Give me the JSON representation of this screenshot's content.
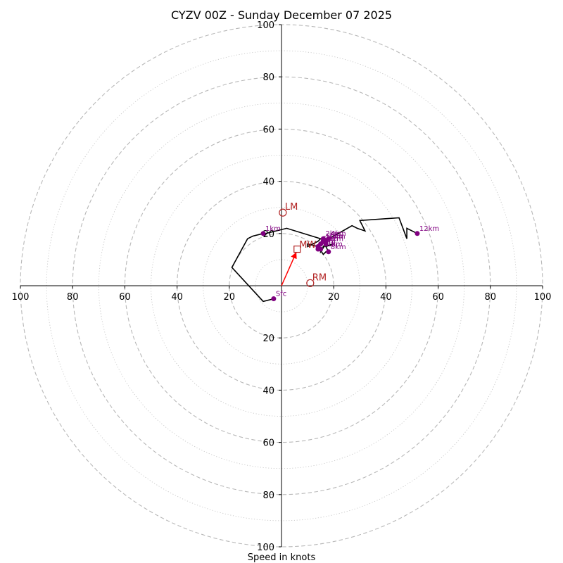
{
  "chart_data": {
    "type": "hodograph",
    "title": "CYZV 00Z - Sunday December 07 2025",
    "xlabel": "Speed in knots",
    "units": "knots",
    "range": [
      -100,
      100
    ],
    "rings_major": [
      20,
      40,
      60,
      80,
      100
    ],
    "rings_minor": [
      10,
      30,
      50,
      70,
      90
    ],
    "x_tick_values": [
      -100,
      -80,
      -60,
      -40,
      -20,
      20,
      40,
      60,
      80,
      100
    ],
    "x_tick_labels": [
      "100",
      "80",
      "60",
      "40",
      "20",
      "20",
      "40",
      "60",
      "80",
      "100"
    ],
    "y_tick_values": [
      100,
      80,
      60,
      40,
      20,
      -20,
      -40,
      -60,
      -80,
      -100
    ],
    "y_tick_labels": [
      "100",
      "80",
      "60",
      "40",
      "20",
      "20",
      "40",
      "60",
      "80",
      "100"
    ],
    "trace": {
      "color": "#000000",
      "points": [
        [
          -3,
          -5
        ],
        [
          -7,
          -6
        ],
        [
          -19,
          7
        ],
        [
          -13,
          18
        ],
        [
          -11,
          19
        ],
        [
          -7,
          20
        ],
        [
          -6,
          20
        ],
        [
          2,
          22
        ],
        [
          15,
          18
        ],
        [
          14,
          17
        ],
        [
          10,
          15
        ],
        [
          10,
          16
        ],
        [
          14,
          15
        ],
        [
          15,
          14
        ],
        [
          15,
          13
        ],
        [
          17,
          16
        ],
        [
          16,
          18
        ],
        [
          17,
          17
        ],
        [
          15,
          16
        ],
        [
          14,
          15
        ],
        [
          16,
          12
        ],
        [
          17,
          13
        ],
        [
          18,
          13
        ],
        [
          17,
          15
        ],
        [
          20,
          16
        ],
        [
          16,
          15
        ],
        [
          18,
          18
        ],
        [
          20,
          19
        ],
        [
          27,
          23
        ],
        [
          29,
          22
        ],
        [
          32,
          21
        ],
        [
          30,
          25
        ],
        [
          45,
          26
        ],
        [
          48,
          18
        ],
        [
          48,
          22
        ],
        [
          52,
          20
        ]
      ]
    },
    "height_markers": {
      "color": "#800080",
      "points": [
        {
          "label": "Sfc",
          "u": -3,
          "v": -5
        },
        {
          "label": "1km",
          "u": -7,
          "v": 20
        },
        {
          "label": "2km",
          "u": 16,
          "v": 18
        },
        {
          "label": "3km",
          "u": 17,
          "v": 17
        },
        {
          "label": "4km",
          "u": 18,
          "v": 18
        },
        {
          "label": "5km",
          "u": 15,
          "v": 16
        },
        {
          "label": "6km",
          "u": 14,
          "v": 15
        },
        {
          "label": "7km",
          "u": 14,
          "v": 14
        },
        {
          "label": "8km",
          "u": 18,
          "v": 13
        },
        {
          "label": "9km",
          "u": 17,
          "v": 16
        },
        {
          "label": "10km",
          "u": 16,
          "v": 17
        },
        {
          "label": "11km",
          "u": 15,
          "v": 14
        },
        {
          "label": "12km",
          "u": 52,
          "v": 20
        }
      ]
    },
    "storm_motion": {
      "color": "#b22222",
      "mean_wind": {
        "label": "MW",
        "u": 6,
        "v": 14
      },
      "left_mover": {
        "label": "LM",
        "u": 0.5,
        "v": 28
      },
      "right_mover": {
        "label": "RM",
        "u": 11,
        "v": 1
      }
    }
  }
}
